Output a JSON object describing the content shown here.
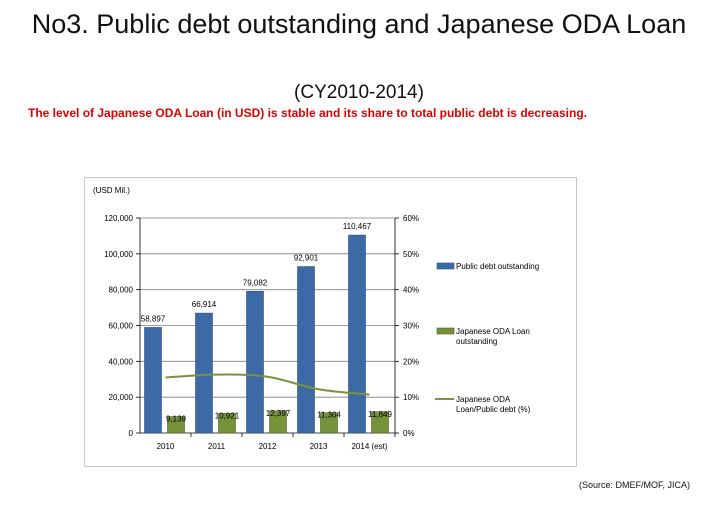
{
  "slide": {
    "title": "No3. Public debt outstanding and Japanese ODA Loan",
    "subtitle": "(CY2010-2014)",
    "headline": "The level of Japanese ODA Loan (in USD) is stable and its share to total public debt is decreasing.",
    "source": "(Source: DMEF/MOF, JICA)"
  },
  "colors": {
    "headline": "#e00000",
    "public_debt": "#3b6aa6",
    "oda_loan": "#76933c",
    "ratio_line": "#77933c"
  },
  "chart_data": {
    "type": "bar",
    "unit_label": "(USD Mil.)",
    "categories": [
      "2010",
      "2011",
      "2012",
      "2013",
      "2014 (est)"
    ],
    "series": [
      {
        "name": "Public debt outstanding",
        "type": "bar",
        "axis": "left",
        "values": [
          58897,
          66914,
          79082,
          92901,
          110467
        ],
        "labels": [
          "58,897",
          "66,914",
          "79,082",
          "92,901",
          "110,467"
        ]
      },
      {
        "name": "Japanese ODA Loan outstanding",
        "type": "bar",
        "axis": "left",
        "values": [
          9139,
          10921,
          12397,
          11304,
          11849
        ],
        "labels": [
          "9,139",
          "10,921",
          "12,397",
          "11,304",
          "11,849"
        ]
      },
      {
        "name": "Japanese ODA Loan/Public debt (%)",
        "type": "line",
        "axis": "right",
        "values": [
          15.5,
          16.3,
          15.7,
          12.2,
          10.7
        ]
      }
    ],
    "y_left": {
      "range": [
        0,
        120000
      ],
      "ticks": [
        "0",
        "20,000",
        "40,000",
        "60,000",
        "80,000",
        "100,000",
        "120,000"
      ]
    },
    "y_right": {
      "range": [
        0,
        60
      ],
      "ticks": [
        "0%",
        "10%",
        "20%",
        "30%",
        "40%",
        "50%",
        "60%"
      ]
    },
    "grid": true,
    "legend_position": "right"
  }
}
